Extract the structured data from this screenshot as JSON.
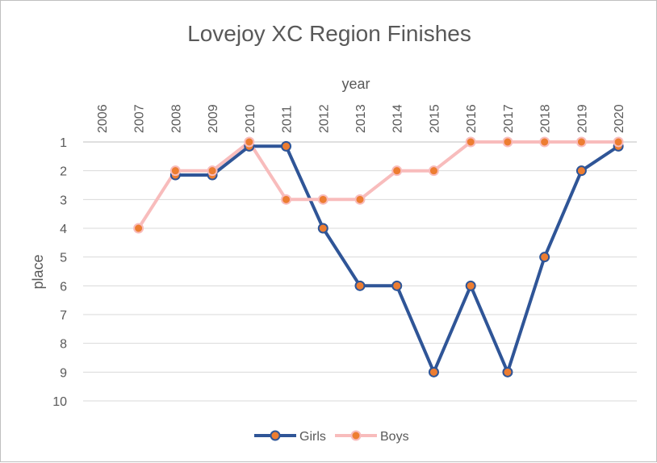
{
  "chart_data": {
    "type": "line",
    "title": "Lovejoy XC Region Finishes",
    "xlabel": "year",
    "ylabel": "place",
    "x": [
      "2006",
      "2007",
      "2008",
      "2009",
      "2010",
      "2011",
      "2012",
      "2013",
      "2014",
      "2015",
      "2016",
      "2017",
      "2018",
      "2019",
      "2020"
    ],
    "yticks": [
      1,
      2,
      3,
      4,
      5,
      6,
      7,
      8,
      9,
      10
    ],
    "ylim": [
      1,
      10
    ],
    "y_reversed": true,
    "x_axis_position": "top",
    "grid": true,
    "legend_position": "bottom",
    "series": [
      {
        "name": "Girls",
        "color": "#2f5597",
        "marker_color": "#ed7d31",
        "values": [
          null,
          null,
          2.15,
          2.15,
          1.15,
          1.15,
          4,
          6,
          6,
          9,
          6,
          9,
          5,
          2,
          1.15
        ]
      },
      {
        "name": "Boys",
        "color": "#f8bcbc",
        "marker_color": "#ed7d31",
        "values": [
          null,
          4,
          2,
          2,
          1,
          3,
          3,
          3,
          2,
          2,
          1,
          1,
          1,
          1,
          1
        ]
      }
    ]
  }
}
